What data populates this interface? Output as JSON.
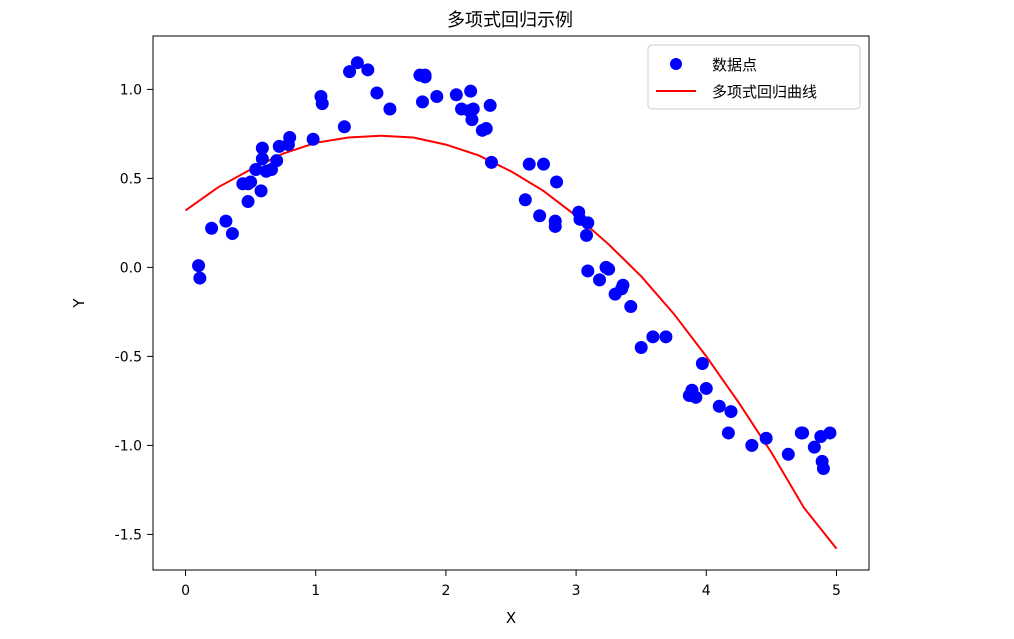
{
  "chart_data": {
    "type": "scatter",
    "title": "多项式回归示例",
    "xlabel": "X",
    "ylabel": "Y",
    "xlim": [
      -0.25,
      5.25
    ],
    "ylim": [
      -1.7,
      1.3
    ],
    "xticks": [
      0,
      1,
      2,
      3,
      4,
      5
    ],
    "yticks": [
      -1.5,
      -1.0,
      -0.5,
      0.0,
      0.5,
      1.0
    ],
    "xtick_labels": [
      "0",
      "1",
      "2",
      "3",
      "4",
      "5"
    ],
    "ytick_labels": [
      "-1.5",
      "-1.0",
      "-0.5",
      "0.0",
      "0.5",
      "1.0"
    ],
    "grid": false,
    "legend_position": "top-right",
    "legend": [
      {
        "label": "数据点",
        "marker": "circle",
        "color": "#0000ff"
      },
      {
        "label": "多项式回归曲线",
        "marker": "line",
        "color": "#ff0000"
      }
    ],
    "series": [
      {
        "name": "数据点",
        "kind": "scatter",
        "color": "#0000ff",
        "x": [
          0.1,
          0.11,
          0.2,
          0.31,
          0.36,
          0.44,
          0.48,
          0.48,
          0.5,
          0.54,
          0.58,
          0.59,
          0.59,
          0.62,
          0.66,
          0.7,
          0.72,
          0.79,
          0.8,
          0.98,
          1.04,
          1.05,
          1.22,
          1.26,
          1.32,
          1.4,
          1.47,
          1.57,
          1.8,
          1.82,
          1.84,
          1.84,
          1.93,
          2.08,
          2.12,
          2.18,
          2.19,
          2.2,
          2.21,
          2.28,
          2.31,
          2.34,
          2.35,
          2.61,
          2.64,
          2.72,
          2.75,
          2.84,
          2.84,
          2.85,
          3.02,
          3.03,
          3.08,
          3.09,
          3.09,
          3.18,
          3.23,
          3.25,
          3.3,
          3.35,
          3.36,
          3.42,
          3.5,
          3.59,
          3.69,
          3.87,
          3.89,
          3.92,
          3.97,
          4.0,
          4.1,
          4.17,
          4.19,
          4.35,
          4.46,
          4.63,
          4.73,
          4.74,
          4.83,
          4.88,
          4.89,
          4.9,
          4.95
        ],
        "y": [
          0.01,
          -0.06,
          0.22,
          0.26,
          0.19,
          0.47,
          0.37,
          0.47,
          0.48,
          0.55,
          0.43,
          0.61,
          0.67,
          0.54,
          0.55,
          0.6,
          0.68,
          0.69,
          0.73,
          0.72,
          0.96,
          0.92,
          0.79,
          1.1,
          1.15,
          1.11,
          0.98,
          0.89,
          1.08,
          0.93,
          1.07,
          1.08,
          0.96,
          0.97,
          0.89,
          0.88,
          0.99,
          0.83,
          0.89,
          0.77,
          0.78,
          0.91,
          0.59,
          0.38,
          0.58,
          0.29,
          0.58,
          0.23,
          0.26,
          0.48,
          0.31,
          0.27,
          0.18,
          0.25,
          -0.02,
          -0.07,
          0.0,
          -0.01,
          -0.15,
          -0.12,
          -0.1,
          -0.22,
          -0.45,
          -0.39,
          -0.39,
          -0.72,
          -0.69,
          -0.73,
          -0.54,
          -0.68,
          -0.78,
          -0.93,
          -0.81,
          -1.0,
          -0.96,
          -1.05,
          -0.93,
          -0.93,
          -1.01,
          -0.95,
          -1.09,
          -1.13,
          -0.93
        ]
      },
      {
        "name": "多项式回归曲线",
        "kind": "line",
        "color": "#ff0000",
        "x": [
          0.0,
          0.25,
          0.5,
          0.75,
          1.0,
          1.25,
          1.5,
          1.75,
          2.0,
          2.25,
          2.5,
          2.75,
          3.0,
          3.25,
          3.5,
          3.75,
          4.0,
          4.25,
          4.5,
          4.75,
          5.0
        ],
        "y": [
          0.32,
          0.45,
          0.55,
          0.64,
          0.7,
          0.73,
          0.74,
          0.73,
          0.69,
          0.63,
          0.54,
          0.43,
          0.29,
          0.13,
          -0.05,
          -0.26,
          -0.5,
          -0.76,
          -1.04,
          -1.35,
          -1.58
        ]
      }
    ]
  }
}
